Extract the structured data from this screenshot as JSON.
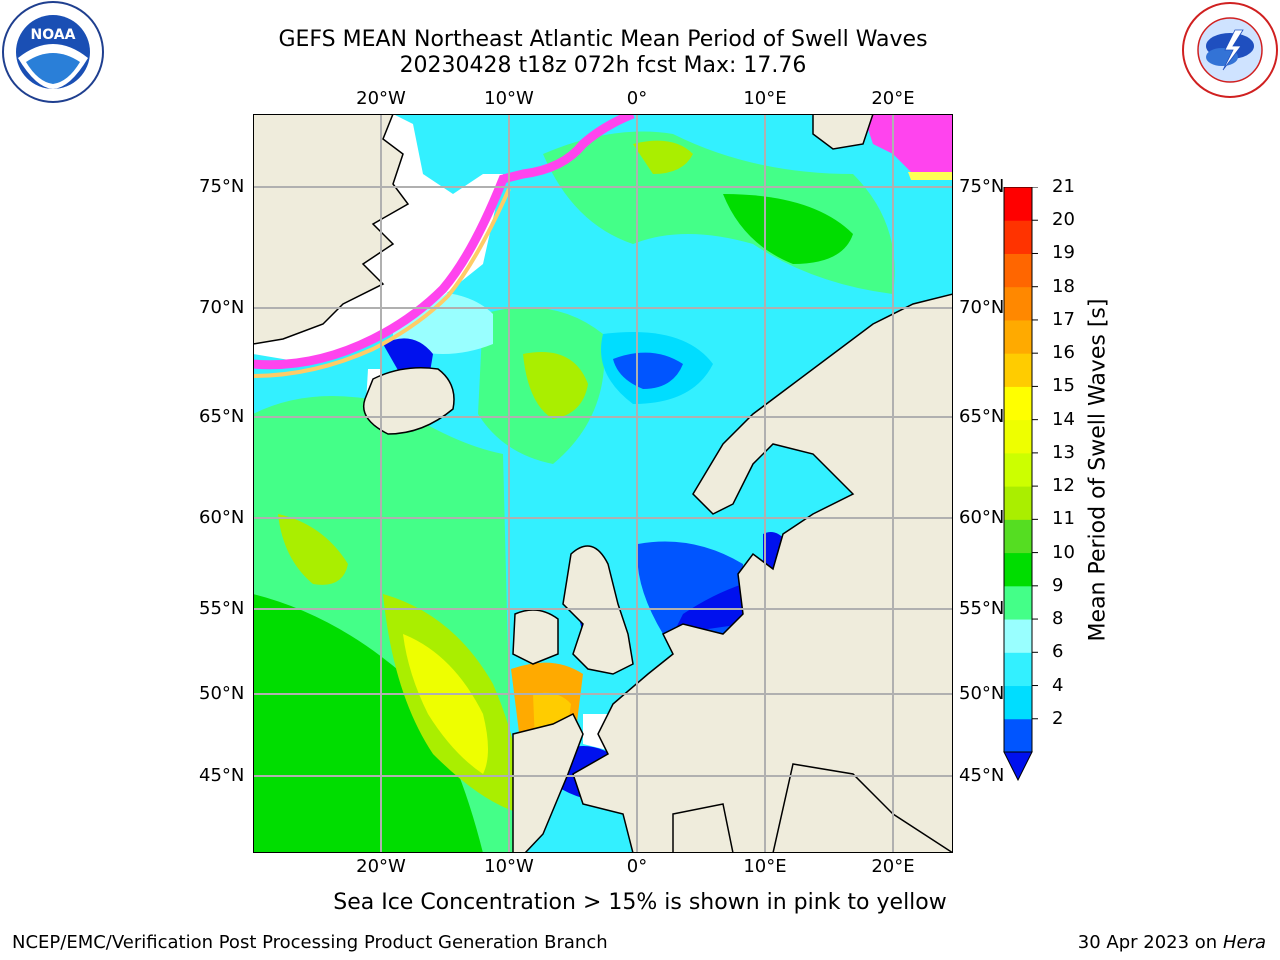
{
  "header": {
    "title_line1": "GEFS MEAN Northeast Atlantic Mean Period of Swell Waves",
    "title_line2": "20230428 t18z 072h fcst   Max: 17.76"
  },
  "logos": {
    "left": {
      "name": "NOAA",
      "ring_text": "NATIONAL OCEANIC AND ATMOSPHERIC ADMINISTRATION · U.S. DEPARTMENT OF COMMERCE"
    },
    "right": {
      "name": "NATIONAL WEATHER SERVICE"
    }
  },
  "map": {
    "longitude_labels": [
      "20°W",
      "10°W",
      "0°",
      "10°E",
      "20°E"
    ],
    "latitude_labels": [
      "75°N",
      "70°N",
      "65°N",
      "60°N",
      "55°N",
      "50°N",
      "45°N"
    ],
    "land_color": "#efecdc",
    "gridline_color": "#b0b0b0"
  },
  "colorbar": {
    "label": "Mean Period of Swell Waves [s]",
    "ticks": [
      "2",
      "4",
      "6",
      "8",
      "9",
      "10",
      "11",
      "12",
      "13",
      "14",
      "15",
      "16",
      "17",
      "18",
      "19",
      "20",
      "21"
    ],
    "colors": [
      "#0055ff",
      "#00ddff",
      "#33f0ff",
      "#99ffff",
      "#44ff88",
      "#00dd00",
      "#55dd22",
      "#aaee00",
      "#ccff00",
      "#eeff00",
      "#ffff00",
      "#ffcc00",
      "#ffaa00",
      "#ff8800",
      "#ff6600",
      "#ff3300",
      "#ff0000"
    ],
    "extend_color": "#0011ee"
  },
  "footer": {
    "note": "Sea Ice Concentration > 15% is shown in pink to yellow",
    "credit": "NCEP/EMC/Verification Post Processing Product Generation Branch",
    "date": "30 Apr 2023 on",
    "machine": "Hera"
  }
}
